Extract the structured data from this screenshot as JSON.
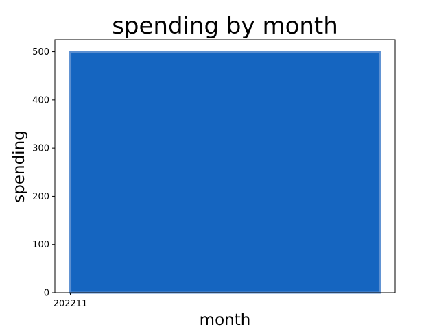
{
  "chart_data": {
    "type": "bar",
    "title": "spending by month",
    "xlabel": "month",
    "ylabel": "spending",
    "categories": [
      "202211"
    ],
    "values": [
      500
    ],
    "ylim": [
      0,
      525
    ],
    "yticks": [
      0,
      100,
      200,
      300,
      400,
      500
    ],
    "grid": false,
    "legend": "none",
    "colors": {
      "bar_fill": "#1565c0",
      "bar_edge": "#5b8fd1",
      "axes": "#000000",
      "background": "#ffffff"
    }
  }
}
